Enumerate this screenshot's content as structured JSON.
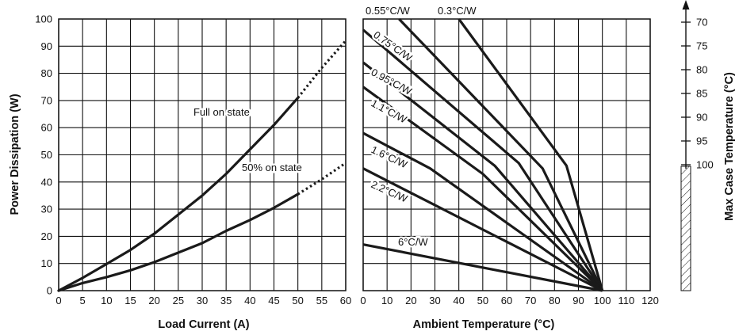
{
  "chart_data": [
    {
      "type": "line",
      "xlabel": "Load Current (A)",
      "ylabel": "Power Dissipation (W)",
      "xlim": [
        0,
        60
      ],
      "ylim": [
        0,
        100
      ],
      "x_ticks": [
        "0",
        "5",
        "10",
        "15",
        "20",
        "25",
        "30",
        "35",
        "40",
        "45",
        "50",
        "55",
        "60"
      ],
      "y_ticks": [
        "0",
        "10",
        "20",
        "30",
        "40",
        "50",
        "60",
        "70",
        "80",
        "90",
        "100"
      ],
      "grid": true,
      "series": [
        {
          "name": "Full on state",
          "x": [
            0,
            5,
            10,
            15,
            20,
            25,
            30,
            35,
            40,
            45,
            50
          ],
          "y": [
            0,
            4.7,
            9.8,
            15,
            21,
            28,
            35,
            43,
            52,
            61,
            71
          ],
          "extrapolated": {
            "x": [
              50,
              55,
              60
            ],
            "y": [
              71,
              82,
              92
            ]
          }
        },
        {
          "name": "50% on state",
          "x": [
            0,
            5,
            10,
            15,
            20,
            25,
            30,
            35,
            40,
            45,
            50
          ],
          "y": [
            0,
            2.8,
            5,
            7.5,
            10.5,
            14,
            17.5,
            22,
            26,
            30.5,
            35.5
          ],
          "extrapolated": {
            "x": [
              50,
              55,
              60
            ],
            "y": [
              35.5,
              41,
              47
            ]
          }
        }
      ]
    },
    {
      "type": "line",
      "xlabel": "Ambient Temperature (°C)",
      "ylabel": "Max Case Temperature (°C)",
      "xlim": [
        0,
        120
      ],
      "x_ticks": [
        "0",
        "10",
        "20",
        "30",
        "40",
        "50",
        "60",
        "70",
        "80",
        "90",
        "100",
        "110",
        "120"
      ],
      "right_axis_ticks": [
        "70",
        "75",
        "80",
        "85",
        "90",
        "95",
        "100"
      ],
      "grid": true,
      "series": [
        {
          "name": "0.3°C/W",
          "x": [
            40,
            85,
            100
          ],
          "y": [
            100,
            46,
            0
          ]
        },
        {
          "name": "0.55°C/W",
          "x": [
            15,
            75,
            100
          ],
          "y": [
            100,
            45,
            0
          ]
        },
        {
          "name": "0.75°C/W",
          "x": [
            0,
            65,
            100
          ],
          "y": [
            96,
            47,
            0
          ]
        },
        {
          "name": "0.95°C/W",
          "x": [
            0,
            55,
            100
          ],
          "y": [
            84,
            46,
            0
          ]
        },
        {
          "name": "1.1°C/W",
          "x": [
            0,
            50,
            100
          ],
          "y": [
            75,
            43,
            0
          ]
        },
        {
          "name": "1.6°C/W",
          "x": [
            0,
            28,
            100
          ],
          "y": [
            58,
            45,
            0
          ]
        },
        {
          "name": "2.2°C/W",
          "x": [
            0,
            100
          ],
          "y": [
            45,
            0
          ]
        },
        {
          "name": "6°C/W",
          "x": [
            0,
            100
          ],
          "y": [
            17,
            0
          ]
        }
      ]
    }
  ],
  "annotations": {
    "full_on": "Full on state",
    "half_on": "50% on state"
  }
}
